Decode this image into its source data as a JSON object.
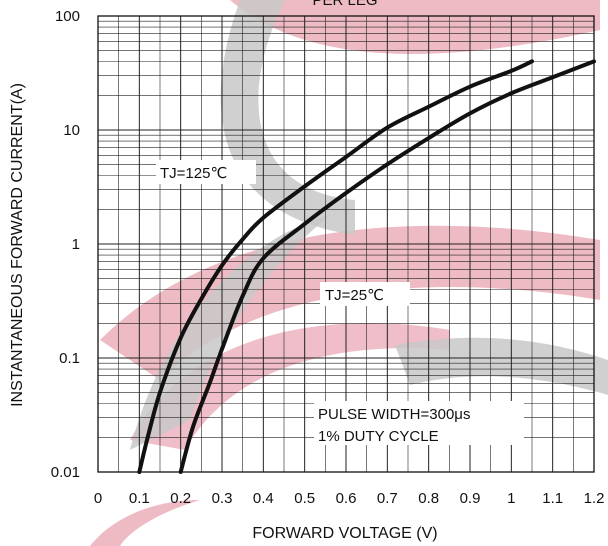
{
  "chart_data": {
    "type": "line",
    "title": "PER LEG",
    "xlabel": "FORWARD VOLTAGE (V)",
    "ylabel": "INSTANTANEOUS FORWARD CURRENT(A)",
    "x_scale": "linear",
    "y_scale": "log",
    "xlim": [
      0,
      1.2
    ],
    "ylim": [
      0.01,
      100
    ],
    "x_ticks": [
      "0",
      "0.1",
      "0.2",
      "0.3",
      "0.4",
      "0.5",
      "0.6",
      "0.7",
      "0.8",
      "0.9",
      "1",
      "1.1",
      "1.2"
    ],
    "y_ticks": [
      "0.01",
      "0.1",
      "1",
      "10",
      "100"
    ],
    "grid": true,
    "series": [
      {
        "name": "TJ=125℃",
        "color": "#111111",
        "x": [
          0.1,
          0.12,
          0.15,
          0.2,
          0.25,
          0.3,
          0.35,
          0.4,
          0.5,
          0.6,
          0.7,
          0.8,
          0.9,
          1.0,
          1.05
        ],
        "y": [
          0.01,
          0.02,
          0.05,
          0.15,
          0.33,
          0.65,
          1.1,
          1.7,
          3.2,
          5.8,
          10.5,
          16,
          24,
          33,
          40
        ]
      },
      {
        "name": "TJ=25℃",
        "color": "#111111",
        "x": [
          0.2,
          0.23,
          0.27,
          0.3,
          0.35,
          0.4,
          0.5,
          0.6,
          0.7,
          0.8,
          0.9,
          1.0,
          1.1,
          1.2
        ],
        "y": [
          0.01,
          0.025,
          0.06,
          0.12,
          0.35,
          0.75,
          1.5,
          2.8,
          5,
          8.5,
          14,
          21,
          29,
          40
        ]
      }
    ],
    "annotations": [
      "TJ=125℃",
      "TJ=25℃",
      "PULSE WIDTH=300μs",
      "1% DUTY CYCLE"
    ],
    "watermark_colors": [
      "#e8a3b0",
      "#c8c8c8"
    ]
  }
}
